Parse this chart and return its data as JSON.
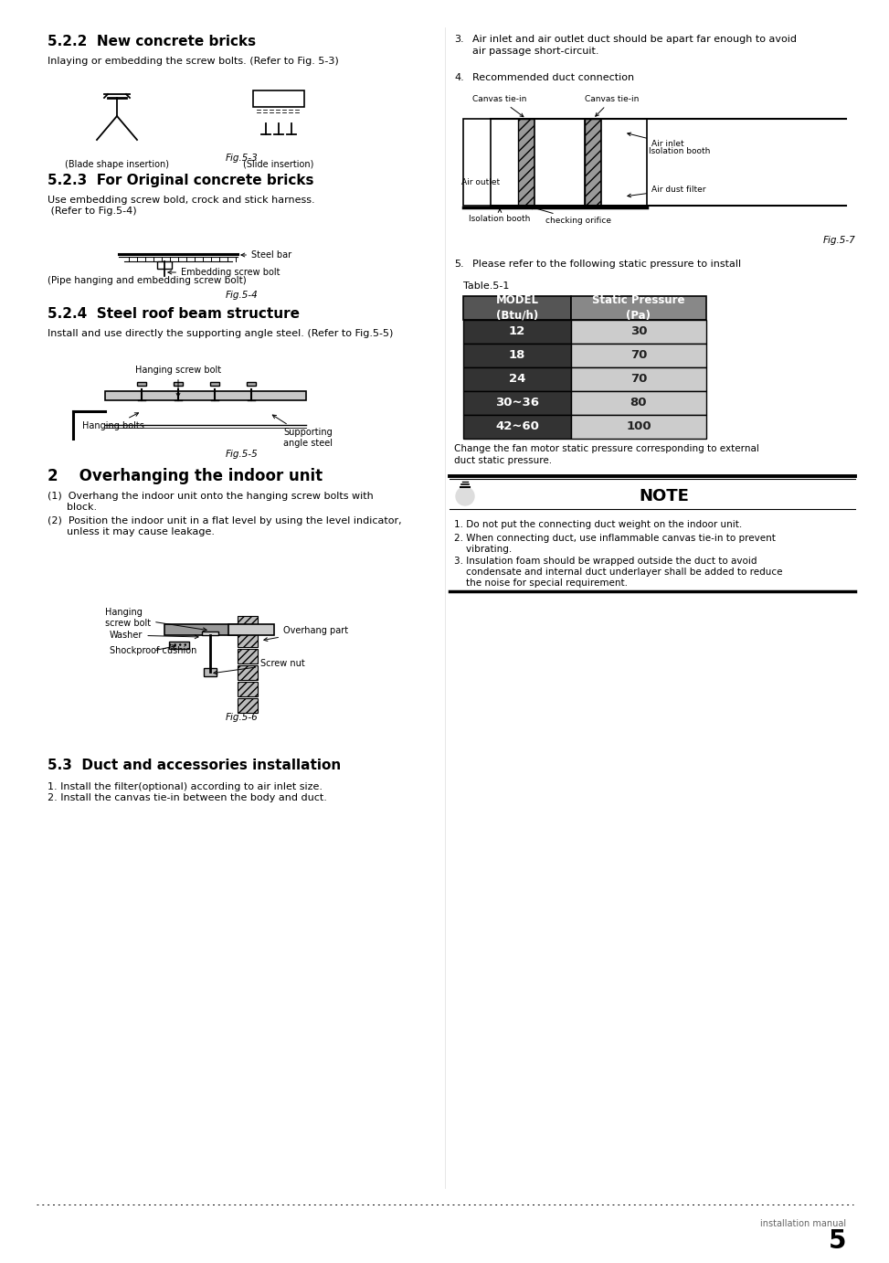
{
  "title_522": "5.2.2  New concrete bricks",
  "body_522": "Inlaying or embedding the screw bolts. (Refer to Fig. 5-3)",
  "label_blade": "(Blade shape insertion)",
  "label_slide": "(Slide insertion)",
  "fig53_caption": "Fig.5-3",
  "title_523": "5.2.3  For Original concrete bricks",
  "body_523a": "Use embedding screw bold, crock and stick harness.",
  "body_523b": " (Refer to Fig.5-4)",
  "label_steelbar": "Steel bar",
  "label_screwbolt": "Embedding screw bolt",
  "label_pipe": "(Pipe hanging and embedding screw bolt)",
  "fig54_caption": "Fig.5-4",
  "title_524": "5.2.4  Steel roof beam structure",
  "body_524": "Install and use directly the supporting angle steel. (Refer to Fig.5-5)",
  "label_hangingscrew": "Hanging screw bolt",
  "label_hangingbolts": "Hanging bolts",
  "label_supporting": "Supporting\nangle steel",
  "fig55_caption": "Fig.5-5",
  "title_2": "2    Overhanging the indoor unit",
  "item_2_1a": "(1)  Overhang the indoor unit onto the hanging screw bolts with",
  "item_2_1b": "      block.",
  "item_2_2a": "(2)  Position the indoor unit in a flat level by using the level indicator,",
  "item_2_2b": "      unless it may cause leakage.",
  "label_screwnut": "Screw nut",
  "label_shockproof": "Shockproof cushion",
  "label_washer": "Washer",
  "label_hangscrew": "Hanging\nscrew bolt",
  "label_overhang": "Overhang part",
  "fig56_caption": "Fig.5-6",
  "title_53": "5.3  Duct and accessories installation",
  "item_53_1": "1. Install the filter(optional) according to air inlet size.",
  "item_53_2": "2. Install the canvas tie-in between the body and duct.",
  "right_3a": "Air inlet and air outlet duct should be apart far enough to avoid",
  "right_3b": "air passage short-circuit.",
  "right_4": "Recommended duct connection",
  "label_canvas1": "Canvas tie-in",
  "label_canvas2": "Canvas tie-in",
  "label_isolbooth1": "Isolation booth",
  "label_airoutlet": "Air outlet",
  "label_isolbooth2": "Isolation booth",
  "label_checking": "checking orifice",
  "label_airinlet": "Air inlet",
  "label_dustfilter": "Air dust filter",
  "fig57_caption": "Fig.5-7",
  "right_5": "Please refer to the following static pressure to install",
  "table_title": "Table.5-1",
  "col1_header": "MODEL\n(Btu/h)",
  "col2_header": "Static Pressure\n(Pa)",
  "table_data": [
    [
      "12",
      "30"
    ],
    [
      "18",
      "70"
    ],
    [
      "24",
      "70"
    ],
    [
      "30~36",
      "80"
    ],
    [
      "42~60",
      "100"
    ]
  ],
  "table_note1": "Change the fan motor static pressure corresponding to external",
  "table_note2": "duct static pressure.",
  "note_title": "NOTE",
  "note_1": "1. Do not put the connecting duct weight on the indoor unit.",
  "note_2a": "2. When connecting duct, use inflammable canvas tie-in to prevent",
  "note_2b": "    vibrating.",
  "note_3a": "3. Insulation foam should be wrapped outside the duct to avoid",
  "note_3b": "    condensate and internal duct underlayer shall be added to reduce",
  "note_3c": "    the noise for special requirement.",
  "footer": "installation manual",
  "page": "5"
}
